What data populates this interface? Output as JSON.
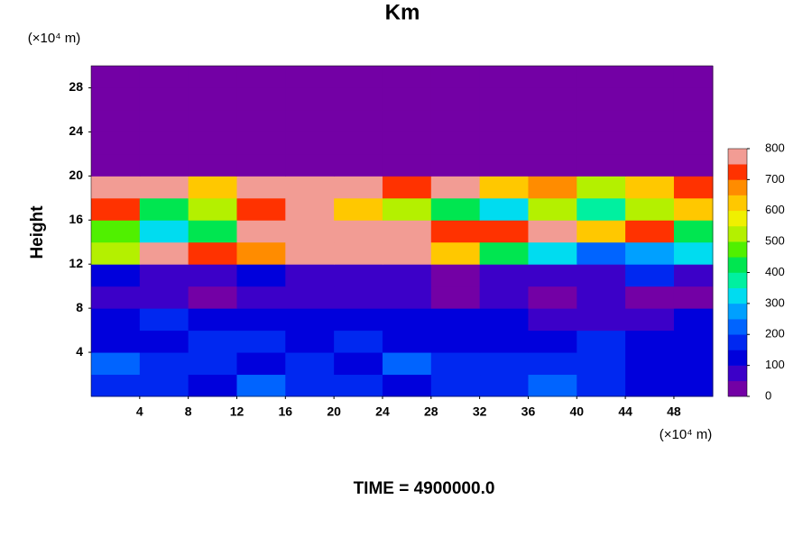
{
  "chart_data": {
    "type": "heatmap",
    "title": "Km",
    "ylabel": "Height",
    "xunit": "(×10⁴ m)",
    "yunit": "(×10⁴ m)",
    "footer": "TIME = 4900000.0",
    "xlim": [
      0,
      51.2
    ],
    "ylim": [
      0,
      30
    ],
    "xticks": [
      4,
      8,
      12,
      16,
      20,
      24,
      28,
      32,
      36,
      40,
      44,
      48
    ],
    "yticks": [
      4,
      8,
      12,
      16,
      20,
      24,
      28
    ],
    "xbins": [
      0,
      4,
      8,
      12,
      16,
      20,
      24,
      28,
      32,
      36,
      40,
      44,
      48,
      51.2
    ],
    "ybins": [
      0,
      2,
      4,
      6,
      8,
      10,
      12,
      14,
      16,
      18,
      20,
      22,
      24,
      26,
      28,
      30
    ],
    "z": [
      [
        150,
        180,
        120,
        200,
        150,
        170,
        140,
        160,
        150,
        200,
        150,
        120,
        100
      ],
      [
        200,
        150,
        170,
        130,
        180,
        140,
        200,
        150,
        170,
        150,
        160,
        130,
        110
      ],
      [
        130,
        120,
        160,
        150,
        140,
        170,
        130,
        140,
        120,
        130,
        150,
        140,
        120
      ],
      [
        120,
        150,
        100,
        130,
        120,
        110,
        120,
        140,
        100,
        80,
        90,
        80,
        100
      ],
      [
        60,
        50,
        40,
        50,
        70,
        60,
        50,
        40,
        60,
        40,
        50,
        40,
        30
      ],
      [
        100,
        60,
        80,
        120,
        50,
        60,
        80,
        40,
        50,
        60,
        80,
        150,
        60
      ],
      [
        500,
        800,
        700,
        650,
        800,
        800,
        800,
        600,
        400,
        300,
        200,
        250,
        300
      ],
      [
        450,
        300,
        400,
        800,
        800,
        800,
        800,
        700,
        700,
        800,
        600,
        700,
        400
      ],
      [
        700,
        400,
        500,
        700,
        800,
        600,
        500,
        400,
        300,
        500,
        350,
        500,
        600
      ],
      [
        800,
        800,
        600,
        800,
        800,
        800,
        700,
        800,
        600,
        650,
        500,
        600,
        700
      ],
      [
        0,
        0,
        0,
        0,
        0,
        0,
        0,
        0,
        0,
        0,
        0,
        0,
        0
      ],
      [
        0,
        0,
        0,
        0,
        0,
        0,
        0,
        0,
        0,
        0,
        0,
        0,
        0
      ],
      [
        0,
        0,
        0,
        0,
        0,
        0,
        0,
        0,
        0,
        0,
        0,
        0,
        0
      ],
      [
        0,
        0,
        0,
        0,
        0,
        0,
        0,
        0,
        0,
        0,
        0,
        0,
        0
      ],
      [
        0,
        0,
        0,
        0,
        0,
        0,
        0,
        0,
        0,
        0,
        0,
        0,
        0
      ]
    ],
    "colorbar": {
      "lim": [
        0,
        800
      ],
      "ticks": [
        0,
        100,
        200,
        300,
        400,
        500,
        600,
        700,
        800
      ],
      "colors": [
        "#7300a5",
        "#3c00c8",
        "#0000dc",
        "#0028f0",
        "#0064ff",
        "#00a0ff",
        "#00dcf0",
        "#00f0a0",
        "#00e650",
        "#50f000",
        "#b4f000",
        "#f0f000",
        "#ffc800",
        "#ff8c00",
        "#ff3200",
        "#f29c94"
      ]
    }
  }
}
